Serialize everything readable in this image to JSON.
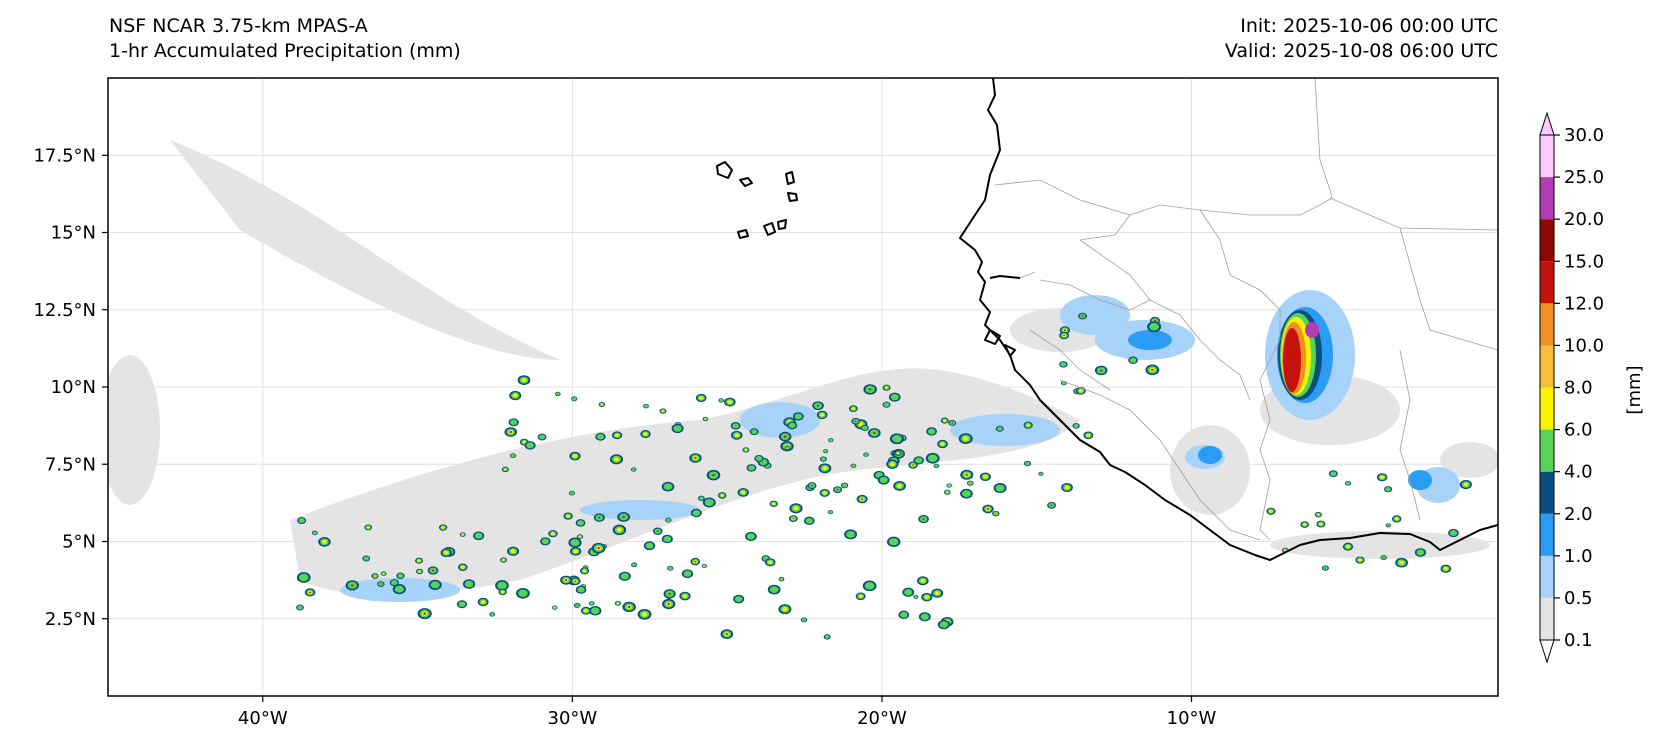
{
  "title": {
    "left_line1": "NSF NCAR 3.75-km MPAS-A",
    "left_line2": "1-hr Accumulated Precipitation (mm)",
    "right_line1": "Init: 2025-10-06 00:00 UTC",
    "right_line2": "Valid: 2025-10-08 06:00 UTC"
  },
  "map": {
    "extent": {
      "lon_min": -45,
      "lon_max": -0.1,
      "lat_min": 0,
      "lat_max": 20
    },
    "lon_ticks": [
      {
        "value": -40,
        "label": "40°W"
      },
      {
        "value": -30,
        "label": "30°W"
      },
      {
        "value": -20,
        "label": "20°W"
      },
      {
        "value": -10,
        "label": "10°W"
      }
    ],
    "lat_ticks": [
      {
        "value": 2.5,
        "label": "2.5°N"
      },
      {
        "value": 5,
        "label": "5°N"
      },
      {
        "value": 7.5,
        "label": "7.5°N"
      },
      {
        "value": 10,
        "label": "10°N"
      },
      {
        "value": 12.5,
        "label": "12.5°N"
      },
      {
        "value": 15,
        "label": "15°N"
      },
      {
        "value": 17.5,
        "label": "17.5°N"
      }
    ],
    "coastline_color": "#000000",
    "border_color": "#a0a0a0"
  },
  "colorbar": {
    "label": "[mm]",
    "levels": [
      "0.1",
      "0.5",
      "1.0",
      "2.0",
      "4.0",
      "6.0",
      "8.0",
      "10.0",
      "12.0",
      "15.0",
      "20.0",
      "25.0",
      "30.0"
    ],
    "colors": [
      "#e4e4e4",
      "#a7d2fa",
      "#2b9cf4",
      "#0c4f7d",
      "#54d459",
      "#fbf302",
      "#f7be3a",
      "#f08f22",
      "#c4130d",
      "#8e0700",
      "#b43cb4",
      "#fdcafd"
    ]
  }
}
